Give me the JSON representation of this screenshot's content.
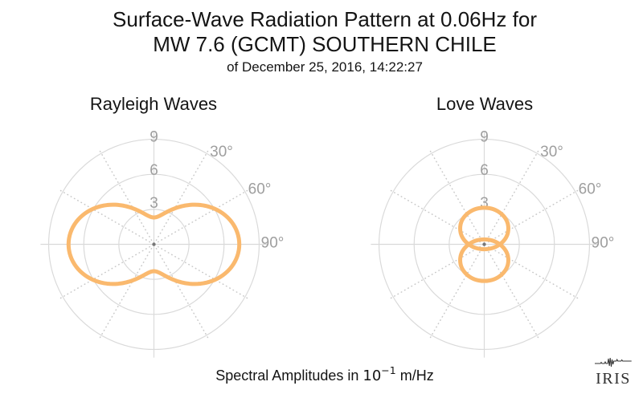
{
  "header": {
    "line1": "Surface-Wave Radiation Pattern at 0.06Hz for",
    "line2": "MW 7.6 (GCMT) SOUTHERN CHILE",
    "line3": "of December 25, 2016, 14:22:27"
  },
  "footer": {
    "text_before_unit": "Spectral Amplitudes in",
    "unit_mantissa": "10",
    "unit_exponent": "−1",
    "text_after_unit": "m/Hz"
  },
  "logo": {
    "text": "IRIS"
  },
  "colors": {
    "curve": "#FAB96E",
    "grid": "#dadada",
    "dotted_grid": "#c9c9c9",
    "tick_labels": "#9e9e9e",
    "title_text": "#141414",
    "center_dot": "#777777",
    "logo": "#303030"
  },
  "chart_data": [
    {
      "type": "line",
      "projection": "polar",
      "title": "Rayleigh Waves",
      "r_ticks": [
        3,
        6,
        9
      ],
      "r_max": 9,
      "theta_tick_deg": [
        30,
        60,
        90
      ],
      "theta_tick_labels": [
        "30°",
        "60°",
        "90°"
      ],
      "theta_grid_step_deg": 30,
      "theta_zero_direction": "up",
      "theta_positive": "clockwise",
      "grid": "on",
      "pattern_model": {
        "name": "offset_cos2theta",
        "base": 4.8,
        "cos2_coeff": -2.5
      },
      "azimuth_deg": [
        0,
        15,
        30,
        45,
        60,
        75,
        90,
        105,
        120,
        135,
        150,
        165,
        180,
        195,
        210,
        225,
        240,
        255,
        270,
        285,
        300,
        315,
        330,
        345
      ],
      "amplitude": [
        2.3,
        2.64,
        3.55,
        4.8,
        6.05,
        6.96,
        7.3,
        6.96,
        6.05,
        4.8,
        3.55,
        2.64,
        2.3,
        2.64,
        3.55,
        4.8,
        6.05,
        6.96,
        7.3,
        6.96,
        6.05,
        4.8,
        3.55,
        2.64
      ],
      "curve_color": "#FAB96E"
    },
    {
      "type": "line",
      "projection": "polar",
      "title": "Love Waves",
      "r_ticks": [
        3,
        6,
        9
      ],
      "r_max": 9,
      "theta_tick_deg": [
        30,
        60,
        90
      ],
      "theta_tick_labels": [
        "30°",
        "60°",
        "90°"
      ],
      "theta_grid_step_deg": 30,
      "theta_zero_direction": "up",
      "theta_positive": "clockwise",
      "grid": "on",
      "pattern_model": {
        "name": "two_vertical_lobes",
        "lobe_center_offset": 1.36,
        "lobe_semi_axis_horizontal": 2.06,
        "lobe_semi_axis_vertical": 1.78
      },
      "azimuth_deg": [
        0,
        15,
        30,
        45,
        60,
        75,
        90,
        105,
        120,
        135,
        150,
        165,
        180,
        195,
        210,
        225,
        240,
        255,
        270,
        285,
        300,
        315,
        330,
        345
      ],
      "amplitude": [
        3.14,
        3.1,
        2.99,
        2.75,
        2.37,
        1.85,
        1.33,
        1.85,
        2.37,
        2.75,
        2.99,
        3.1,
        3.14,
        3.1,
        2.99,
        2.75,
        2.37,
        1.85,
        1.33,
        1.85,
        2.37,
        2.75,
        2.99,
        3.1
      ],
      "curve_color": "#FAB96E"
    }
  ]
}
